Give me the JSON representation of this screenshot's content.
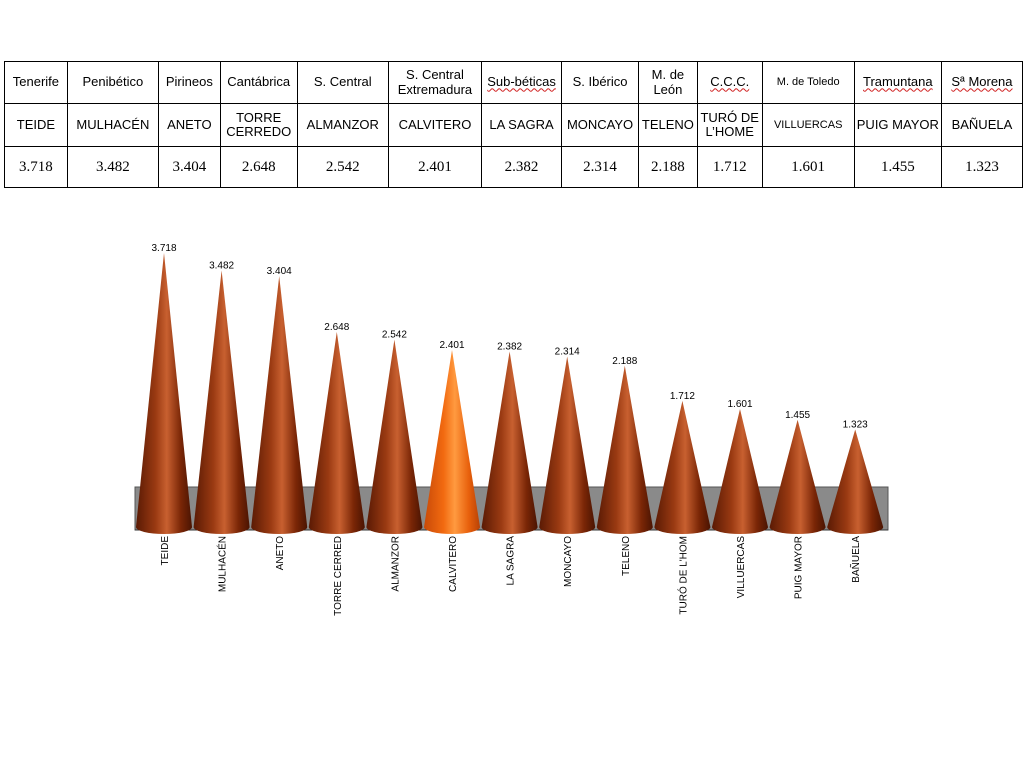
{
  "table": {
    "ranges": [
      "Tenerife",
      "Penibético",
      "Pirineos",
      "Cantábrica",
      "S. Central",
      "S. Central Extremadura",
      "Sub-béticas",
      "S. Ibérico",
      "M. de León",
      "C.C.C.",
      "M. de Toledo",
      "Tramuntana",
      "Sª Morena"
    ],
    "peaks": [
      "TEIDE",
      "MULHACÉN",
      "ANETO",
      "TORRE CERREDO",
      "ALMANZOR",
      "CALVITERO",
      "LA SAGRA",
      "MONCAYO",
      "TELENO",
      "TURÓ DE L’HOME",
      "VILLUERCAS",
      "PUIG MAYOR",
      "BAÑUELA"
    ],
    "altitudes": [
      "3.718",
      "3.482",
      "3.404",
      "2.648",
      "2.542",
      "2.401",
      "2.382",
      "2.314",
      "2.188",
      "1.712",
      "1.601",
      "1.455",
      "1.323"
    ]
  },
  "colors": {
    "cone": "#8a2e08",
    "cone_highlight": "#d86a3a",
    "cone_accent": "#f26a10",
    "floor": "#8a8a8a"
  },
  "chart_data": {
    "type": "bar",
    "bar_shape": "cone",
    "categories": [
      "TEIDE",
      "MULHACÉN",
      "ANETO",
      "TORRE CERRED",
      "ALMANZOR",
      "CALVITERO",
      "LA SAGRA",
      "MONCAYO",
      "TELENO",
      "TURÓ DE L'HOM",
      "VILLUERCAS",
      "PUIG MAYOR",
      "BAÑUELA"
    ],
    "values": [
      3718,
      3482,
      3404,
      2648,
      2542,
      2401,
      2382,
      2314,
      2188,
      1712,
      1601,
      1455,
      1323
    ],
    "data_labels": [
      "3.718",
      "3.482",
      "3.404",
      "2.648",
      "2.542",
      "2.401",
      "2.382",
      "2.314",
      "2.188",
      "1.712",
      "1.601",
      "1.455",
      "1.323"
    ],
    "highlight_index": 5,
    "title": "",
    "xlabel": "",
    "ylabel": "",
    "ylim": [
      0,
      3718
    ],
    "grid": false,
    "legend": "none"
  }
}
